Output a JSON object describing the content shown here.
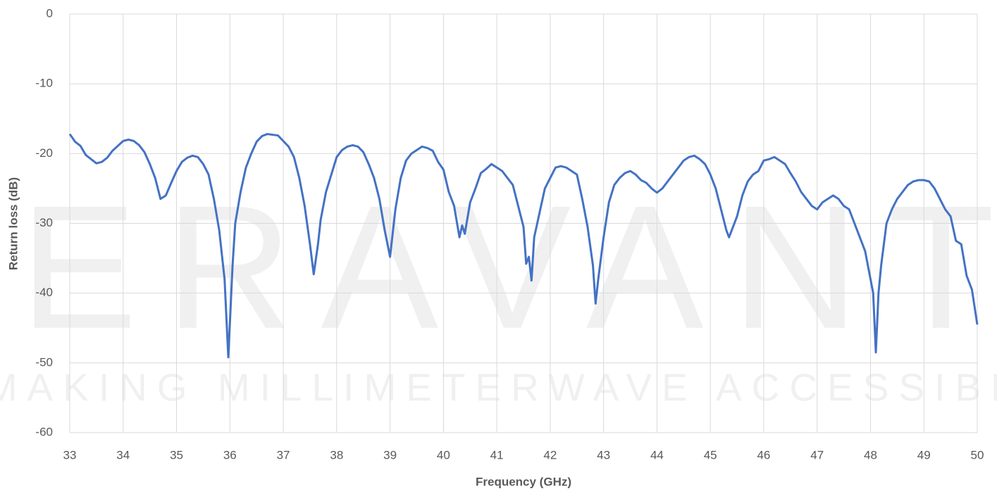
{
  "chart_data": {
    "type": "line",
    "xlabel": "Frequency (GHz)",
    "ylabel": "Return loss (dB)",
    "watermark": "ERAVANT",
    "watermark_tagline": "MAKING MILLIMETERWAVE ACCESSIBLE",
    "xlim": [
      33,
      50
    ],
    "ylim": [
      -60,
      0
    ],
    "xticks": [
      33,
      34,
      35,
      36,
      37,
      38,
      39,
      40,
      41,
      42,
      43,
      44,
      45,
      46,
      47,
      48,
      49,
      50
    ],
    "yticks": [
      0,
      -10,
      -20,
      -30,
      -40,
      -50,
      -60
    ],
    "grid": true,
    "x": [
      33.0,
      33.1,
      33.2,
      33.3,
      33.4,
      33.5,
      33.6,
      33.7,
      33.8,
      33.9,
      34.0,
      34.1,
      34.2,
      34.3,
      34.4,
      34.5,
      34.6,
      34.7,
      34.8,
      34.9,
      35.0,
      35.1,
      35.2,
      35.3,
      35.4,
      35.5,
      35.6,
      35.7,
      35.8,
      35.9,
      35.97,
      36.05,
      36.1,
      36.2,
      36.3,
      36.4,
      36.5,
      36.6,
      36.7,
      36.8,
      36.9,
      37.0,
      37.1,
      37.2,
      37.3,
      37.4,
      37.5,
      37.57,
      37.65,
      37.7,
      37.8,
      37.9,
      38.0,
      38.1,
      38.2,
      38.3,
      38.4,
      38.5,
      38.6,
      38.7,
      38.8,
      38.9,
      39.0,
      39.1,
      39.2,
      39.3,
      39.4,
      39.5,
      39.6,
      39.7,
      39.8,
      39.9,
      40.0,
      40.1,
      40.2,
      40.3,
      40.35,
      40.4,
      40.5,
      40.6,
      40.7,
      40.8,
      40.9,
      41.0,
      41.1,
      41.2,
      41.3,
      41.4,
      41.5,
      41.55,
      41.6,
      41.65,
      41.7,
      41.8,
      41.9,
      42.0,
      42.1,
      42.2,
      42.3,
      42.4,
      42.5,
      42.6,
      42.7,
      42.8,
      42.85,
      42.9,
      43.0,
      43.1,
      43.2,
      43.3,
      43.4,
      43.5,
      43.6,
      43.7,
      43.8,
      43.9,
      44.0,
      44.1,
      44.2,
      44.3,
      44.4,
      44.5,
      44.6,
      44.7,
      44.8,
      44.9,
      45.0,
      45.1,
      45.2,
      45.3,
      45.35,
      45.4,
      45.5,
      45.6,
      45.7,
      45.8,
      45.9,
      46.0,
      46.1,
      46.2,
      46.3,
      46.4,
      46.5,
      46.6,
      46.7,
      46.8,
      46.9,
      47.0,
      47.1,
      47.2,
      47.3,
      47.4,
      47.5,
      47.6,
      47.7,
      47.8,
      47.9,
      48.0,
      48.05,
      48.1,
      48.15,
      48.2,
      48.3,
      48.4,
      48.5,
      48.6,
      48.7,
      48.8,
      48.9,
      49.0,
      49.1,
      49.2,
      49.3,
      49.4,
      49.5,
      49.6,
      49.7,
      49.8,
      49.9,
      50.0
    ],
    "series": [
      {
        "color": "#4472c4",
        "values": [
          -17.2,
          -18.3,
          -18.9,
          -20.2,
          -20.8,
          -21.4,
          -21.2,
          -20.6,
          -19.6,
          -18.9,
          -18.2,
          -18.0,
          -18.2,
          -18.8,
          -19.8,
          -21.5,
          -23.5,
          -26.5,
          -26.0,
          -24.2,
          -22.5,
          -21.2,
          -20.6,
          -20.3,
          -20.5,
          -21.5,
          -23.0,
          -26.5,
          -31.0,
          -38.0,
          -49.2,
          -36.0,
          -30.0,
          -25.5,
          -22.0,
          -20.0,
          -18.3,
          -17.5,
          -17.2,
          -17.3,
          -17.4,
          -18.2,
          -19.0,
          -20.5,
          -23.5,
          -27.5,
          -33.0,
          -37.3,
          -33.0,
          -29.5,
          -25.5,
          -23.0,
          -20.5,
          -19.5,
          -19.0,
          -18.8,
          -19.0,
          -19.8,
          -21.5,
          -23.5,
          -26.5,
          -31.0,
          -34.8,
          -28.0,
          -23.5,
          -21.0,
          -20.0,
          -19.5,
          -19.0,
          -19.2,
          -19.6,
          -21.2,
          -22.3,
          -25.5,
          -27.5,
          -32.0,
          -30.3,
          -31.5,
          -27.0,
          -25.0,
          -22.8,
          -22.2,
          -21.5,
          -22.0,
          -22.5,
          -23.5,
          -24.5,
          -27.5,
          -30.5,
          -35.8,
          -34.8,
          -38.2,
          -32.0,
          -28.5,
          -25.0,
          -23.5,
          -22.0,
          -21.8,
          -22.0,
          -22.5,
          -23.0,
          -26.5,
          -30.5,
          -36.0,
          -41.5,
          -38.0,
          -32.0,
          -27.0,
          -24.5,
          -23.5,
          -22.8,
          -22.5,
          -23.0,
          -23.8,
          -24.2,
          -25.0,
          -25.6,
          -25.0,
          -24.0,
          -23.0,
          -22.0,
          -21.0,
          -20.5,
          -20.3,
          -20.8,
          -21.5,
          -23.0,
          -25.0,
          -28.0,
          -31.0,
          -32.0,
          -31.0,
          -29.0,
          -26.0,
          -24.0,
          -23.0,
          -22.5,
          -21.0,
          -20.8,
          -20.5,
          -21.0,
          -21.5,
          -22.8,
          -24.0,
          -25.5,
          -26.5,
          -27.5,
          -28.0,
          -27.0,
          -26.5,
          -26.0,
          -26.5,
          -27.5,
          -28.0,
          -30.0,
          -32.0,
          -34.0,
          -38.0,
          -40.0,
          -48.5,
          -40.0,
          -36.0,
          -30.0,
          -28.0,
          -26.5,
          -25.5,
          -24.5,
          -24.0,
          -23.8,
          -23.8,
          -24.0,
          -25.0,
          -26.5,
          -28.0,
          -29.0,
          -32.5,
          -33.0,
          -37.5,
          -39.5,
          -44.5
        ]
      }
    ]
  }
}
